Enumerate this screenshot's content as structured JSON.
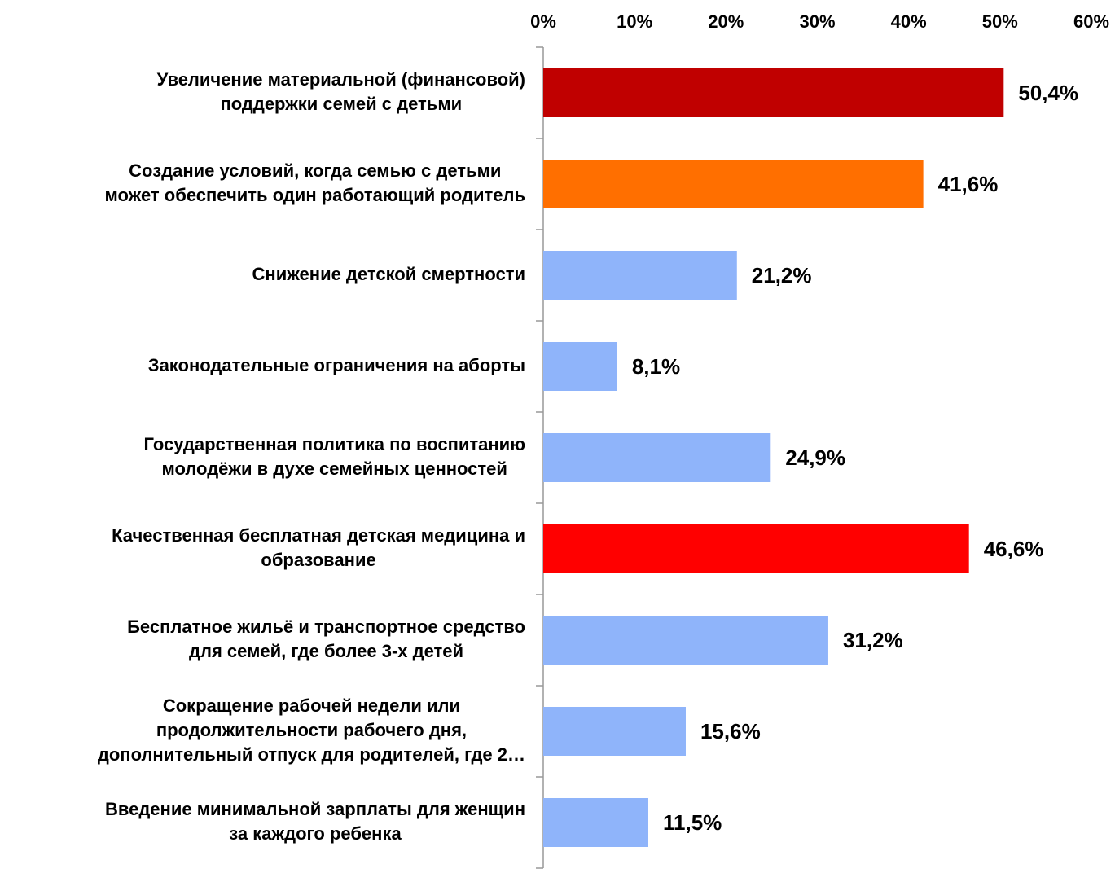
{
  "chart_data": {
    "type": "barh",
    "categories": [
      [
        "Увеличение материальной (финансовой)",
        "поддержки семей с детьми"
      ],
      [
        "Создание условий, когда семью с детьми",
        "может обеспечить один работающий родитель"
      ],
      [
        "Снижение детской смертности"
      ],
      [
        "Законодательные ограничения на аборты"
      ],
      [
        "Государственная политика по воспитанию",
        "молодёжи в духе семейных ценностей"
      ],
      [
        "Качественная бесплатная детская медицина и",
        "образование"
      ],
      [
        "Бесплатное жильё и транспортное средство",
        "для семей, где более 3-х детей"
      ],
      [
        "Сокращение рабочей недели или",
        "продолжительности рабочего дня,",
        "дополнительный отпуск для родителей, где 2…"
      ],
      [
        "Введение минимальной зарплаты для женщин",
        "за каждого ребенка"
      ]
    ],
    "values": [
      50.4,
      41.6,
      21.2,
      8.1,
      24.9,
      46.6,
      31.2,
      15.6,
      11.5
    ],
    "value_labels": [
      "50,4%",
      "41,6%",
      "21,2%",
      "8,1%",
      "24,9%",
      "46,6%",
      "31,2%",
      "15,6%",
      "11,5%"
    ],
    "colors": [
      "#c00000",
      "#ff6f00",
      "#8fb4fa",
      "#8fb4fa",
      "#8fb4fa",
      "#ff0000",
      "#8fb4fa",
      "#8fb4fa",
      "#8fb4fa"
    ],
    "xlim": [
      0,
      60
    ],
    "xticks": [
      {
        "value": 0,
        "label": "0%"
      },
      {
        "value": 10,
        "label": "10%"
      },
      {
        "value": 20,
        "label": "20%"
      },
      {
        "value": 30,
        "label": "30%"
      },
      {
        "value": 40,
        "label": "40%"
      },
      {
        "value": 50,
        "label": "50%"
      },
      {
        "value": 60,
        "label": "60%"
      }
    ],
    "grid": false
  }
}
